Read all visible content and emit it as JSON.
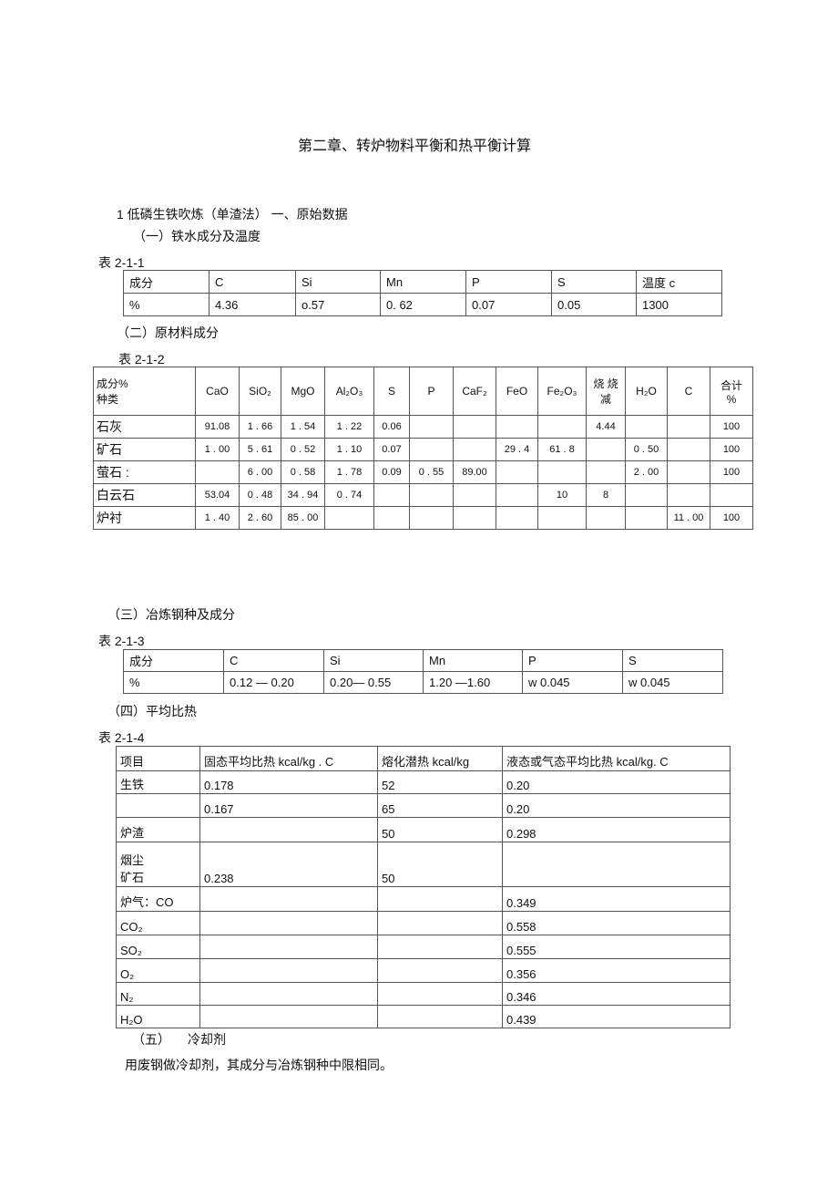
{
  "title": "第二章、转炉物料平衡和热平衡计算",
  "section1": "1 低磷生铁吹炼（单渣法）  一、原始数据",
  "sub1": "（一）铁水成分及温度",
  "table1": {
    "label": "表 2-1-1",
    "rows": [
      [
        "成分",
        "C",
        "Si",
        "Mn",
        "P",
        "S",
        "温度 c"
      ],
      [
        "%",
        "4.36",
        "o.57",
        "0. 62",
        "0.07",
        "0.05",
        "1300"
      ]
    ]
  },
  "sub2": "（二）原材料成分",
  "table2": {
    "label": "表 2-1-2",
    "header": [
      "成分%\n种类",
      "CaO",
      "SiO₂",
      "MgO",
      "Al₂O₃",
      "S",
      "P",
      "CaF₂",
      "FeO",
      "Fe₂O₃",
      "烧 烧\n减",
      "H₂O",
      "C",
      "合计\n%"
    ],
    "rows": [
      [
        "石灰",
        "91.08",
        "1 . 66",
        "1 . 54",
        "1 . 22",
        "0.06",
        "",
        "",
        "",
        "",
        "4.44",
        "",
        "",
        "100"
      ],
      [
        "矿石",
        "1 . 00",
        "5 . 61",
        "0 . 52",
        "1 . 10",
        "0.07",
        "",
        "",
        "29 . 4",
        "61 . 8",
        "",
        "0 . 50",
        "",
        "100"
      ],
      [
        "萤石         :",
        "",
        "6 . 00",
        "0 . 58",
        "1 . 78",
        "0.09",
        "0 . 55",
        "89.00",
        "",
        "",
        "",
        "2 . 00",
        "",
        "100"
      ],
      [
        "白云石",
        "53.04",
        "0 . 48",
        "34 . 94",
        "0 . 74",
        "",
        "",
        "",
        "",
        "10",
        "8",
        "",
        "",
        ""
      ],
      [
        "炉衬",
        "1 . 40",
        "2 . 60",
        "85 . 00",
        "",
        "",
        "",
        "",
        "",
        "",
        "",
        "",
        "11 . 00",
        "100"
      ]
    ]
  },
  "sub3": "（三）冶炼钢种及成分",
  "table3": {
    "label": "表 2-1-3",
    "rows": [
      [
        "成分",
        "C",
        "Si",
        "Mn",
        "P",
        "S"
      ],
      [
        "%",
        "0.12 — 0.20",
        "0.20— 0.55",
        "1.20 —1.60",
        "w 0.045",
        "w 0.045"
      ]
    ]
  },
  "sub4": "（四）平均比热",
  "table4": {
    "label": "表 2-1-4",
    "rows": [
      [
        "项目",
        "固态平均比热 kcal/kg . C",
        "熔化潜热 kcal/kg",
        "液态或气态平均比热     kcal/kg. C"
      ],
      [
        "生铁",
        "0.178",
        "52",
        "0.20"
      ],
      [
        "",
        "0.167",
        "65",
        "0.20"
      ],
      [
        "炉渣",
        "",
        "50",
        "0.298"
      ],
      [
        "烟尘\n矿石",
        "0.238",
        "50",
        ""
      ],
      [
        "炉气：CO",
        "",
        "",
        "0.349"
      ],
      [
        "CO₂",
        "",
        "",
        "0.558"
      ],
      [
        "SO₂",
        "",
        "",
        "0.555"
      ],
      [
        "O₂",
        "",
        "",
        "0.356"
      ],
      [
        "N₂",
        "",
        "",
        "0.346"
      ],
      [
        "H₂O",
        "",
        "",
        "0.439"
      ]
    ]
  },
  "sub5_num": "（五）",
  "sub5_label": "冷却剂",
  "para5": "用废钢做冷却剂，其成分与冶炼钢种中限相同。"
}
